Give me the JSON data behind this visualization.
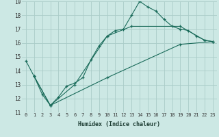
{
  "xlabel": "Humidex (Indice chaleur)",
  "bg_color": "#cce8e4",
  "grid_color": "#aaccc8",
  "line_color": "#1a6b5a",
  "xlim": [
    -0.5,
    23.5
  ],
  "ylim": [
    11,
    19
  ],
  "xticks": [
    0,
    1,
    2,
    3,
    4,
    5,
    6,
    7,
    8,
    9,
    10,
    11,
    12,
    13,
    14,
    15,
    16,
    17,
    18,
    19,
    20,
    21,
    22,
    23
  ],
  "yticks": [
    11,
    12,
    13,
    14,
    15,
    16,
    17,
    18,
    19
  ],
  "line1_x": [
    0,
    1,
    2,
    3,
    4,
    5,
    6,
    7,
    8,
    9,
    10,
    11,
    12,
    13,
    14,
    15,
    16,
    17,
    18,
    19,
    20,
    21,
    22,
    23
  ],
  "line1_y": [
    14.7,
    13.6,
    12.3,
    11.5,
    12.1,
    12.9,
    13.1,
    13.5,
    14.8,
    15.8,
    16.5,
    16.9,
    17.0,
    18.0,
    19.0,
    18.6,
    18.3,
    17.7,
    17.2,
    17.0,
    16.9,
    16.5,
    16.2,
    16.1
  ],
  "line2_x": [
    1,
    23
  ],
  "line2_y": [
    13.6,
    16.1
  ],
  "line3_x": [
    1,
    23
  ],
  "line3_y": [
    13.6,
    16.1
  ],
  "line2_markers_x": [
    1,
    3,
    6,
    10,
    13,
    19,
    22,
    23
  ],
  "line2_markers_y": [
    13.6,
    11.5,
    13.0,
    16.5,
    17.2,
    17.2,
    16.2,
    16.1
  ],
  "line3_markers_x": [
    1,
    3,
    10,
    19,
    23
  ],
  "line3_markers_y": [
    13.6,
    11.5,
    13.5,
    15.9,
    16.1
  ]
}
